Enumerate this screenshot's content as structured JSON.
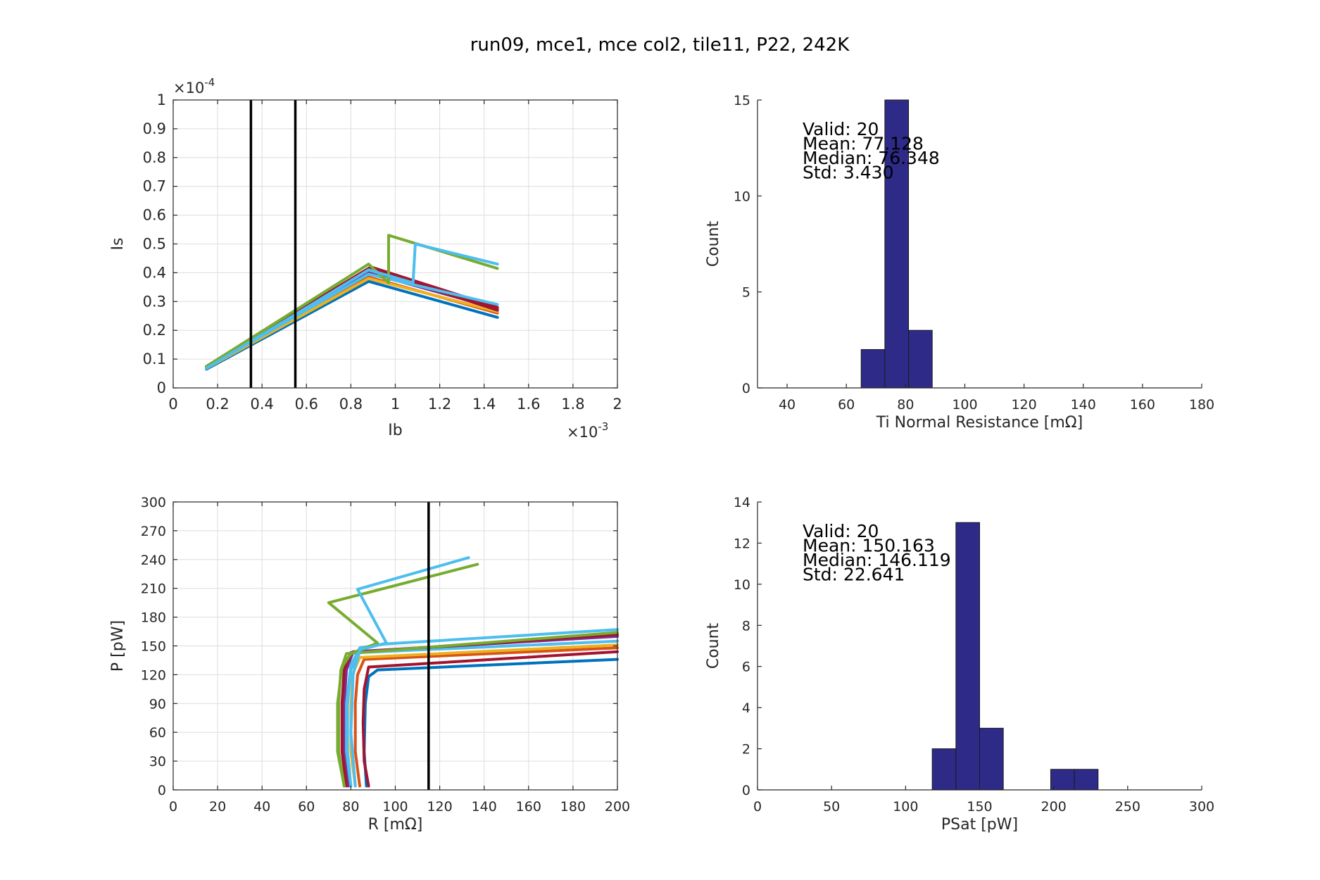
{
  "figure_title": "run09, mce1, mce col2, tile11, P22, 242K",
  "colors": {
    "bar_fill": "#2e2a87",
    "bar_edge": "#1a1a1a",
    "grid": "#dddddd",
    "axis": "#262626",
    "marker_line": "#000000",
    "series_palette": [
      "#0072bd",
      "#d95319",
      "#edb120",
      "#7e2f8e",
      "#77ac30",
      "#4dbeee",
      "#a2142f"
    ]
  },
  "chart_data": [
    {
      "id": "iv",
      "type": "line",
      "xlabel": "Ib",
      "ylabel": "Is",
      "xlim": [
        0,
        0.002
      ],
      "ylim": [
        0,
        0.0001
      ],
      "x_ticks": [
        "0",
        "0.2",
        "0.4",
        "0.6",
        "0.8",
        "1",
        "1.2",
        "1.4",
        "1.6",
        "1.8",
        "2"
      ],
      "y_ticks": [
        "0",
        "0.1",
        "0.2",
        "0.3",
        "0.4",
        "0.5",
        "0.6",
        "0.7",
        "0.8",
        "0.9",
        "1"
      ],
      "x_exponent": "×10",
      "x_exponent_power": "-3",
      "y_exponent": "×10",
      "y_exponent_power": "-4",
      "grid": true,
      "vertical_markers": [
        0.00035,
        0.00055
      ],
      "series": [
        {
          "color": "#0072bd",
          "x": [
            0.00015,
            0.00088,
            0.00146
          ],
          "y": [
            6.5e-06,
            3.7e-05,
            2.45e-05
          ]
        },
        {
          "color": "#d95319",
          "x": [
            0.00015,
            0.00088,
            0.00146
          ],
          "y": [
            7e-06,
            3.85e-05,
            2.6e-05
          ]
        },
        {
          "color": "#edb120",
          "x": [
            0.00015,
            0.00088,
            0.00146
          ],
          "y": [
            6.8e-06,
            3.8e-05,
            2.65e-05
          ]
        },
        {
          "color": "#7e2f8e",
          "x": [
            0.00015,
            0.00088,
            0.00146
          ],
          "y": [
            7e-06,
            4e-05,
            2.75e-05
          ]
        },
        {
          "color": "#a2142f",
          "x": [
            0.00015,
            0.00088,
            0.00146
          ],
          "y": [
            7.5e-06,
            4.15e-05,
            2.7e-05
          ]
        },
        {
          "color": "#a2142f",
          "x": [
            0.00015,
            0.00089,
            0.00146
          ],
          "y": [
            7.3e-06,
            4.2e-05,
            2.8e-05
          ]
        },
        {
          "color": "#4dbeee",
          "x": [
            0.00015,
            0.00088,
            0.00146
          ],
          "y": [
            7e-06,
            3.95e-05,
            2.9e-05
          ]
        },
        {
          "color": "#77ac30",
          "x": [
            0.00015,
            0.00088,
            0.00097,
            0.00097,
            0.00146
          ],
          "y": [
            7.5e-06,
            4.3e-05,
            3.65e-05,
            5.3e-05,
            4.15e-05
          ]
        },
        {
          "color": "#4dbeee",
          "x": [
            0.00015,
            0.00088,
            0.00108,
            0.00109,
            0.00146
          ],
          "y": [
            6.8e-06,
            4.1e-05,
            3.65e-05,
            5e-05,
            4.3e-05
          ]
        }
      ]
    },
    {
      "id": "rn-hist",
      "type": "bar",
      "xlabel": "Ti Normal Resistance [mΩ]",
      "ylabel": "Count",
      "xlim": [
        30,
        180
      ],
      "ylim": [
        0,
        15
      ],
      "x_ticks": [
        "40",
        "60",
        "80",
        "100",
        "120",
        "140",
        "160",
        "180"
      ],
      "y_ticks": [
        "0",
        "5",
        "10",
        "15"
      ],
      "bins": [
        {
          "from": 65,
          "to": 73,
          "count": 2
        },
        {
          "from": 73,
          "to": 81,
          "count": 15
        },
        {
          "from": 81,
          "to": 89,
          "count": 3
        }
      ],
      "stats": [
        "Valid: 20",
        "Mean: 77.128",
        "Median: 76.348",
        "Std: 3.430"
      ]
    },
    {
      "id": "pr",
      "type": "line",
      "xlabel": "R [mΩ]",
      "ylabel": "P [pW]",
      "xlim": [
        0,
        200
      ],
      "ylim": [
        0,
        300
      ],
      "x_ticks": [
        "0",
        "20",
        "40",
        "60",
        "80",
        "100",
        "120",
        "140",
        "160",
        "180",
        "200"
      ],
      "y_ticks": [
        "0",
        "30",
        "60",
        "90",
        "120",
        "150",
        "180",
        "210",
        "240",
        "270",
        "300"
      ],
      "grid": true,
      "vertical_markers": [
        115
      ],
      "series": [
        {
          "color": "#0072bd",
          "x": [
            87,
            86,
            86.5,
            88,
            92,
            200
          ],
          "y": [
            4,
            40,
            90,
            118,
            125,
            136
          ]
        },
        {
          "color": "#a2142f",
          "x": [
            88,
            86,
            85.5,
            86,
            88,
            200
          ],
          "y": [
            4,
            30,
            70,
            105,
            128,
            144
          ]
        },
        {
          "color": "#d95319",
          "x": [
            84,
            82,
            82,
            83,
            86,
            200
          ],
          "y": [
            4,
            40,
            90,
            120,
            136,
            148
          ]
        },
        {
          "color": "#edb120",
          "x": [
            82,
            80,
            80,
            81,
            84,
            200
          ],
          "y": [
            4,
            40,
            90,
            122,
            138,
            151
          ]
        },
        {
          "color": "#4dbeee",
          "x": [
            80,
            78.5,
            78.5,
            80,
            84,
            200
          ],
          "y": [
            4,
            40,
            90,
            125,
            143,
            155
          ]
        },
        {
          "color": "#7e2f8e",
          "x": [
            79,
            77,
            77,
            78,
            81,
            200
          ],
          "y": [
            4,
            40,
            90,
            125,
            144,
            160
          ]
        },
        {
          "color": "#a2142f",
          "x": [
            78,
            76,
            76,
            77,
            80,
            200
          ],
          "y": [
            4,
            40,
            90,
            125,
            143,
            162
          ]
        },
        {
          "color": "#77ac30",
          "x": [
            77,
            74.5,
            74.5,
            75.5,
            78,
            200
          ],
          "y": [
            4,
            40,
            90,
            125,
            142,
            164
          ]
        },
        {
          "color": "#4dbeee",
          "x": [
            80,
            78,
            78,
            80,
            84,
            95,
            200
          ],
          "y": [
            4,
            40,
            90,
            130,
            148,
            152,
            167
          ]
        },
        {
          "color": "#77ac30",
          "x": [
            77,
            74,
            74,
            76,
            80,
            92,
            70,
            137
          ],
          "y": [
            4,
            40,
            90,
            128,
            142,
            153,
            195,
            235
          ]
        },
        {
          "color": "#4dbeee",
          "x": [
            82,
            80,
            81,
            84,
            96,
            83,
            133
          ],
          "y": [
            4,
            60,
            120,
            146,
            153,
            209,
            242
          ]
        }
      ]
    },
    {
      "id": "psat-hist",
      "type": "bar",
      "xlabel": "PSat [pW]",
      "ylabel": "Count",
      "xlim": [
        0,
        300
      ],
      "ylim": [
        0,
        14
      ],
      "x_ticks": [
        "0",
        "50",
        "100",
        "150",
        "200",
        "250",
        "300"
      ],
      "y_ticks": [
        "0",
        "2",
        "4",
        "6",
        "8",
        "10",
        "12",
        "14"
      ],
      "bins": [
        {
          "from": 118,
          "to": 134,
          "count": 2
        },
        {
          "from": 134,
          "to": 150,
          "count": 13
        },
        {
          "from": 150,
          "to": 166,
          "count": 3
        },
        {
          "from": 198,
          "to": 214,
          "count": 1
        },
        {
          "from": 214,
          "to": 230,
          "count": 1
        }
      ],
      "stats": [
        "Valid: 20",
        "Mean: 150.163",
        "Median: 146.119",
        "Std: 22.641"
      ]
    }
  ]
}
